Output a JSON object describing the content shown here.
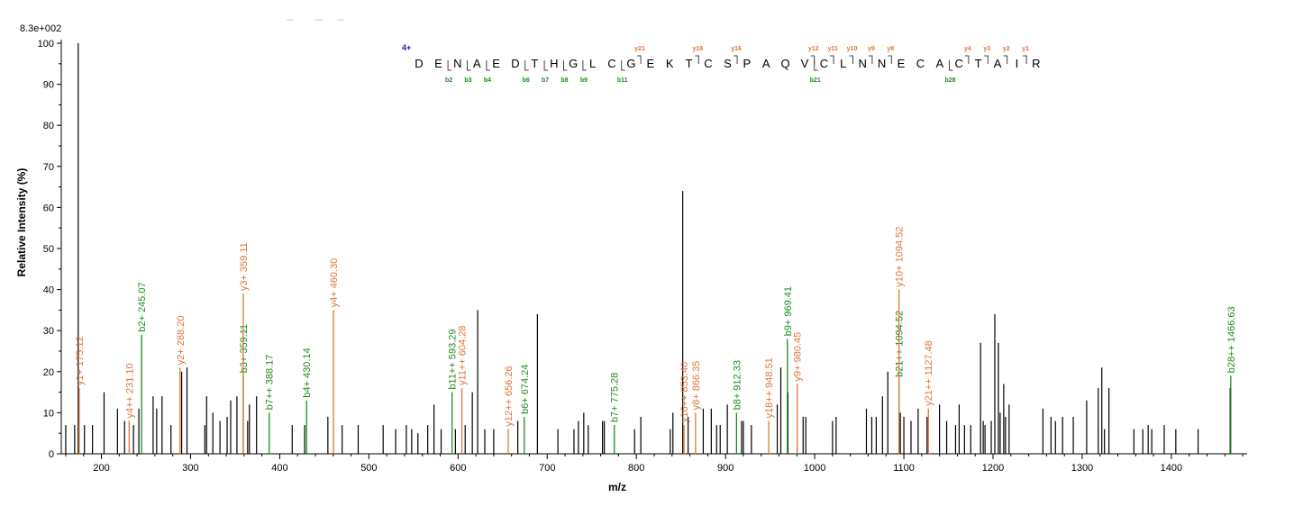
{
  "chart_data": {
    "type": "bar",
    "scale_label": "8.3e+002",
    "xlabel": "m/z",
    "ylabel": "Relative   Intensity (%)",
    "xlim": [
      155,
      1485
    ],
    "ylim": [
      0,
      100
    ],
    "x_ticks": [
      200,
      300,
      400,
      500,
      600,
      700,
      800,
      900,
      1000,
      1100,
      1200,
      1300,
      1400
    ],
    "y_ticks": [
      0,
      10,
      20,
      30,
      40,
      50,
      60,
      70,
      80,
      90,
      100
    ],
    "colors": {
      "unmatched": "#000000",
      "y_ion": "#e0743a",
      "b_ion": "#1e8c1e",
      "charge": "#1a1ab4"
    },
    "peaks": [
      [
        160,
        7
      ],
      [
        170,
        7
      ],
      [
        174,
        100
      ],
      [
        181,
        7
      ],
      [
        190,
        7
      ],
      [
        203,
        15
      ],
      [
        218,
        11
      ],
      [
        226,
        8
      ],
      [
        236,
        7
      ],
      [
        242,
        11
      ],
      [
        258,
        14
      ],
      [
        262,
        11
      ],
      [
        268,
        14
      ],
      [
        278,
        7
      ],
      [
        290,
        20
      ],
      [
        296,
        21
      ],
      [
        316,
        7
      ],
      [
        318,
        14
      ],
      [
        325,
        10
      ],
      [
        333,
        8
      ],
      [
        341,
        9
      ],
      [
        345,
        13
      ],
      [
        352,
        14
      ],
      [
        364,
        8
      ],
      [
        366,
        12
      ],
      [
        374,
        14
      ],
      [
        414,
        7
      ],
      [
        428,
        7
      ],
      [
        454,
        9
      ],
      [
        470,
        7
      ],
      [
        488,
        7
      ],
      [
        516,
        7
      ],
      [
        530,
        6
      ],
      [
        542,
        7
      ],
      [
        548,
        6
      ],
      [
        555,
        5
      ],
      [
        566,
        7
      ],
      [
        573,
        12
      ],
      [
        581,
        6
      ],
      [
        597,
        6
      ],
      [
        608,
        7
      ],
      [
        616,
        15
      ],
      [
        622,
        35
      ],
      [
        630,
        6
      ],
      [
        640,
        6
      ],
      [
        667,
        8
      ],
      [
        689,
        34
      ],
      [
        712,
        6
      ],
      [
        730,
        6
      ],
      [
        735,
        8
      ],
      [
        741,
        10
      ],
      [
        746,
        7
      ],
      [
        762,
        8
      ],
      [
        764,
        8
      ],
      [
        798,
        6
      ],
      [
        805,
        9
      ],
      [
        838,
        6
      ],
      [
        841,
        10
      ],
      [
        852,
        64
      ],
      [
        858,
        9
      ],
      [
        875,
        11
      ],
      [
        884,
        11
      ],
      [
        890,
        7
      ],
      [
        894,
        7
      ],
      [
        902,
        12
      ],
      [
        918,
        8
      ],
      [
        920,
        8
      ],
      [
        929,
        7
      ],
      [
        958,
        12
      ],
      [
        962,
        21
      ],
      [
        970,
        15
      ],
      [
        987,
        9
      ],
      [
        990,
        9
      ],
      [
        1020,
        8
      ],
      [
        1024,
        9
      ],
      [
        1058,
        11
      ],
      [
        1064,
        9
      ],
      [
        1069,
        9
      ],
      [
        1076,
        14
      ],
      [
        1082,
        20
      ],
      [
        1096,
        10
      ],
      [
        1100,
        9
      ],
      [
        1108,
        8
      ],
      [
        1116,
        11
      ],
      [
        1126,
        9
      ],
      [
        1140,
        12
      ],
      [
        1148,
        8
      ],
      [
        1158,
        7
      ],
      [
        1162,
        12
      ],
      [
        1168,
        7
      ],
      [
        1175,
        7
      ],
      [
        1186,
        27
      ],
      [
        1189,
        8
      ],
      [
        1191,
        7
      ],
      [
        1198,
        8
      ],
      [
        1202,
        34
      ],
      [
        1206,
        27
      ],
      [
        1208,
        10
      ],
      [
        1212,
        17
      ],
      [
        1214,
        9
      ],
      [
        1218,
        12
      ],
      [
        1256,
        11
      ],
      [
        1265,
        9
      ],
      [
        1270,
        8
      ],
      [
        1278,
        9
      ],
      [
        1290,
        9
      ],
      [
        1305,
        13
      ],
      [
        1318,
        16
      ],
      [
        1322,
        21
      ],
      [
        1325,
        6
      ],
      [
        1330,
        16
      ],
      [
        1358,
        6
      ],
      [
        1368,
        6
      ],
      [
        1374,
        7
      ],
      [
        1378,
        6
      ],
      [
        1392,
        7
      ],
      [
        1405,
        6
      ],
      [
        1430,
        6
      ],
      [
        1466,
        16
      ]
    ],
    "annotations": [
      {
        "x": 175.12,
        "h": 16,
        "label": "y1+ 175.12",
        "ion": "y"
      },
      {
        "x": 231.1,
        "h": 8,
        "label": "y4++ 231.10",
        "ion": "y"
      },
      {
        "x": 245.07,
        "h": 29,
        "label": "b2+ 245.07",
        "ion": "b"
      },
      {
        "x": 288.2,
        "h": 21,
        "label": "y2+ 288.20",
        "ion": "y"
      },
      {
        "x": 359.11,
        "h": 19,
        "label": "b3+ 359.11",
        "ion": "b"
      },
      {
        "x": 359.11,
        "h": 39,
        "label": "y3+ 359.11",
        "ion": "y"
      },
      {
        "x": 388.17,
        "h": 10,
        "label": "b7++ 388.17",
        "ion": "b"
      },
      {
        "x": 430.14,
        "h": 13,
        "label": "b4+ 430.14",
        "ion": "b"
      },
      {
        "x": 460.3,
        "h": 35,
        "label": "y4+ 460.30",
        "ion": "y"
      },
      {
        "x": 593.29,
        "h": 15,
        "label": "b11++ 593.29",
        "ion": "b"
      },
      {
        "x": 604.28,
        "h": 16,
        "label": "y11++ 604.28",
        "ion": "y"
      },
      {
        "x": 656.26,
        "h": 6,
        "label": "y12++ 656.26",
        "ion": "y"
      },
      {
        "x": 674.24,
        "h": 9,
        "label": "b6+ 674.24",
        "ion": "b"
      },
      {
        "x": 775.28,
        "h": 7,
        "label": "b7+ 775.28",
        "ion": "b"
      },
      {
        "x": 853.4,
        "h": 7,
        "label": "y16++ 853.40",
        "ion": "y"
      },
      {
        "x": 866.35,
        "h": 10,
        "label": "y8+ 866.35",
        "ion": "y"
      },
      {
        "x": 912.33,
        "h": 10,
        "label": "b8+ 912.33",
        "ion": "b"
      },
      {
        "x": 948.51,
        "h": 8,
        "label": "y18++ 948.51",
        "ion": "y"
      },
      {
        "x": 969.41,
        "h": 28,
        "label": "b9+ 969.41",
        "ion": "b"
      },
      {
        "x": 980.45,
        "h": 17,
        "label": "y9+ 980.45",
        "ion": "y"
      },
      {
        "x": 1094.52,
        "h": 18,
        "label": "b21++ 1094.52",
        "ion": "b"
      },
      {
        "x": 1094.52,
        "h": 40,
        "label": "y10+ 1094.52",
        "ion": "y"
      },
      {
        "x": 1127.48,
        "h": 11,
        "label": "y21++ 1127.48",
        "ion": "y"
      },
      {
        "x": 1466.63,
        "h": 19,
        "label": "b28++ 1466.63",
        "ion": "b"
      }
    ],
    "peptide": {
      "charge": "4+",
      "sequence": [
        "D",
        "E",
        "N",
        "A",
        "E",
        "D",
        "T",
        "H",
        "G",
        "L",
        "C",
        "G",
        "E",
        "K",
        "T",
        "C",
        "S",
        "P",
        "A",
        "Q",
        "V",
        "C",
        "L",
        "N",
        "N",
        "E",
        "C",
        "A",
        "C",
        "T",
        "A",
        "I",
        "R"
      ],
      "y_ions": [
        [
          "y21",
          12
        ],
        [
          "y18",
          15
        ],
        [
          "y16",
          17
        ],
        [
          "y12",
          21
        ],
        [
          "y11",
          22
        ],
        [
          "y10",
          23
        ],
        [
          "y9",
          24
        ],
        [
          "y8",
          25
        ],
        [
          "y4",
          29
        ],
        [
          "y3",
          30
        ],
        [
          "y2",
          31
        ],
        [
          "y1",
          32
        ]
      ],
      "b_ions": [
        [
          "b2",
          2
        ],
        [
          "b3",
          3
        ],
        [
          "b4",
          4
        ],
        [
          "b6",
          6
        ],
        [
          "b7",
          7
        ],
        [
          "b8",
          8
        ],
        [
          "b9",
          9
        ],
        [
          "b11",
          11
        ],
        [
          "b21",
          21
        ],
        [
          "b28",
          28
        ]
      ]
    }
  }
}
